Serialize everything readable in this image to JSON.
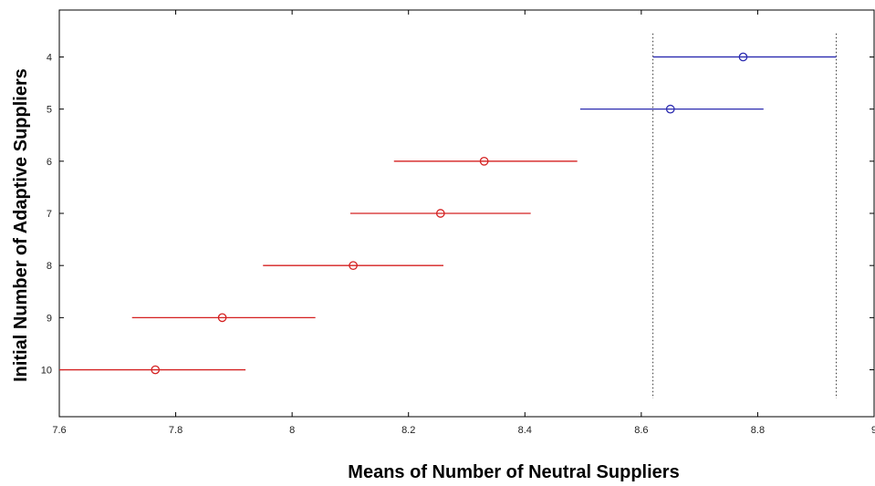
{
  "chart_data": {
    "type": "scatter",
    "subtype": "interval-plot",
    "title": "",
    "xlabel": "Means of Number of Neutral Suppliers",
    "ylabel": "Initial Number of Adaptive Suppliers",
    "xlim": [
      7.6,
      9.0
    ],
    "ylim": [
      3.1,
      10.9
    ],
    "y_axis_reversed": true,
    "grid": false,
    "x_ticks": [
      7.6,
      7.8,
      8.0,
      8.2,
      8.4,
      8.6,
      8.8,
      9.0
    ],
    "x_tick_labels": [
      "7.6",
      "7.8",
      "8",
      "8.2",
      "8.4",
      "8.6",
      "8.8",
      "9"
    ],
    "y_ticks": [
      4,
      5,
      6,
      7,
      8,
      9,
      10
    ],
    "y_tick_labels": [
      "4",
      "5",
      "6",
      "7",
      "8",
      "9",
      "10"
    ],
    "reference_lines_x": [
      8.62,
      8.935
    ],
    "series": [
      {
        "color": "#2b2bb0",
        "points": [
          {
            "y": 4,
            "mean": 8.775,
            "lower": 8.62,
            "upper": 8.935
          },
          {
            "y": 5,
            "mean": 8.65,
            "lower": 8.495,
            "upper": 8.81
          }
        ]
      },
      {
        "color": "#d42020",
        "points": [
          {
            "y": 6,
            "mean": 8.33,
            "lower": 8.175,
            "upper": 8.49
          },
          {
            "y": 7,
            "mean": 8.255,
            "lower": 8.1,
            "upper": 8.41
          },
          {
            "y": 8,
            "mean": 8.105,
            "lower": 7.95,
            "upper": 8.26
          },
          {
            "y": 9,
            "mean": 7.88,
            "lower": 7.725,
            "upper": 8.04
          },
          {
            "y": 10,
            "mean": 7.765,
            "lower": 7.6,
            "upper": 7.92
          }
        ]
      }
    ]
  }
}
